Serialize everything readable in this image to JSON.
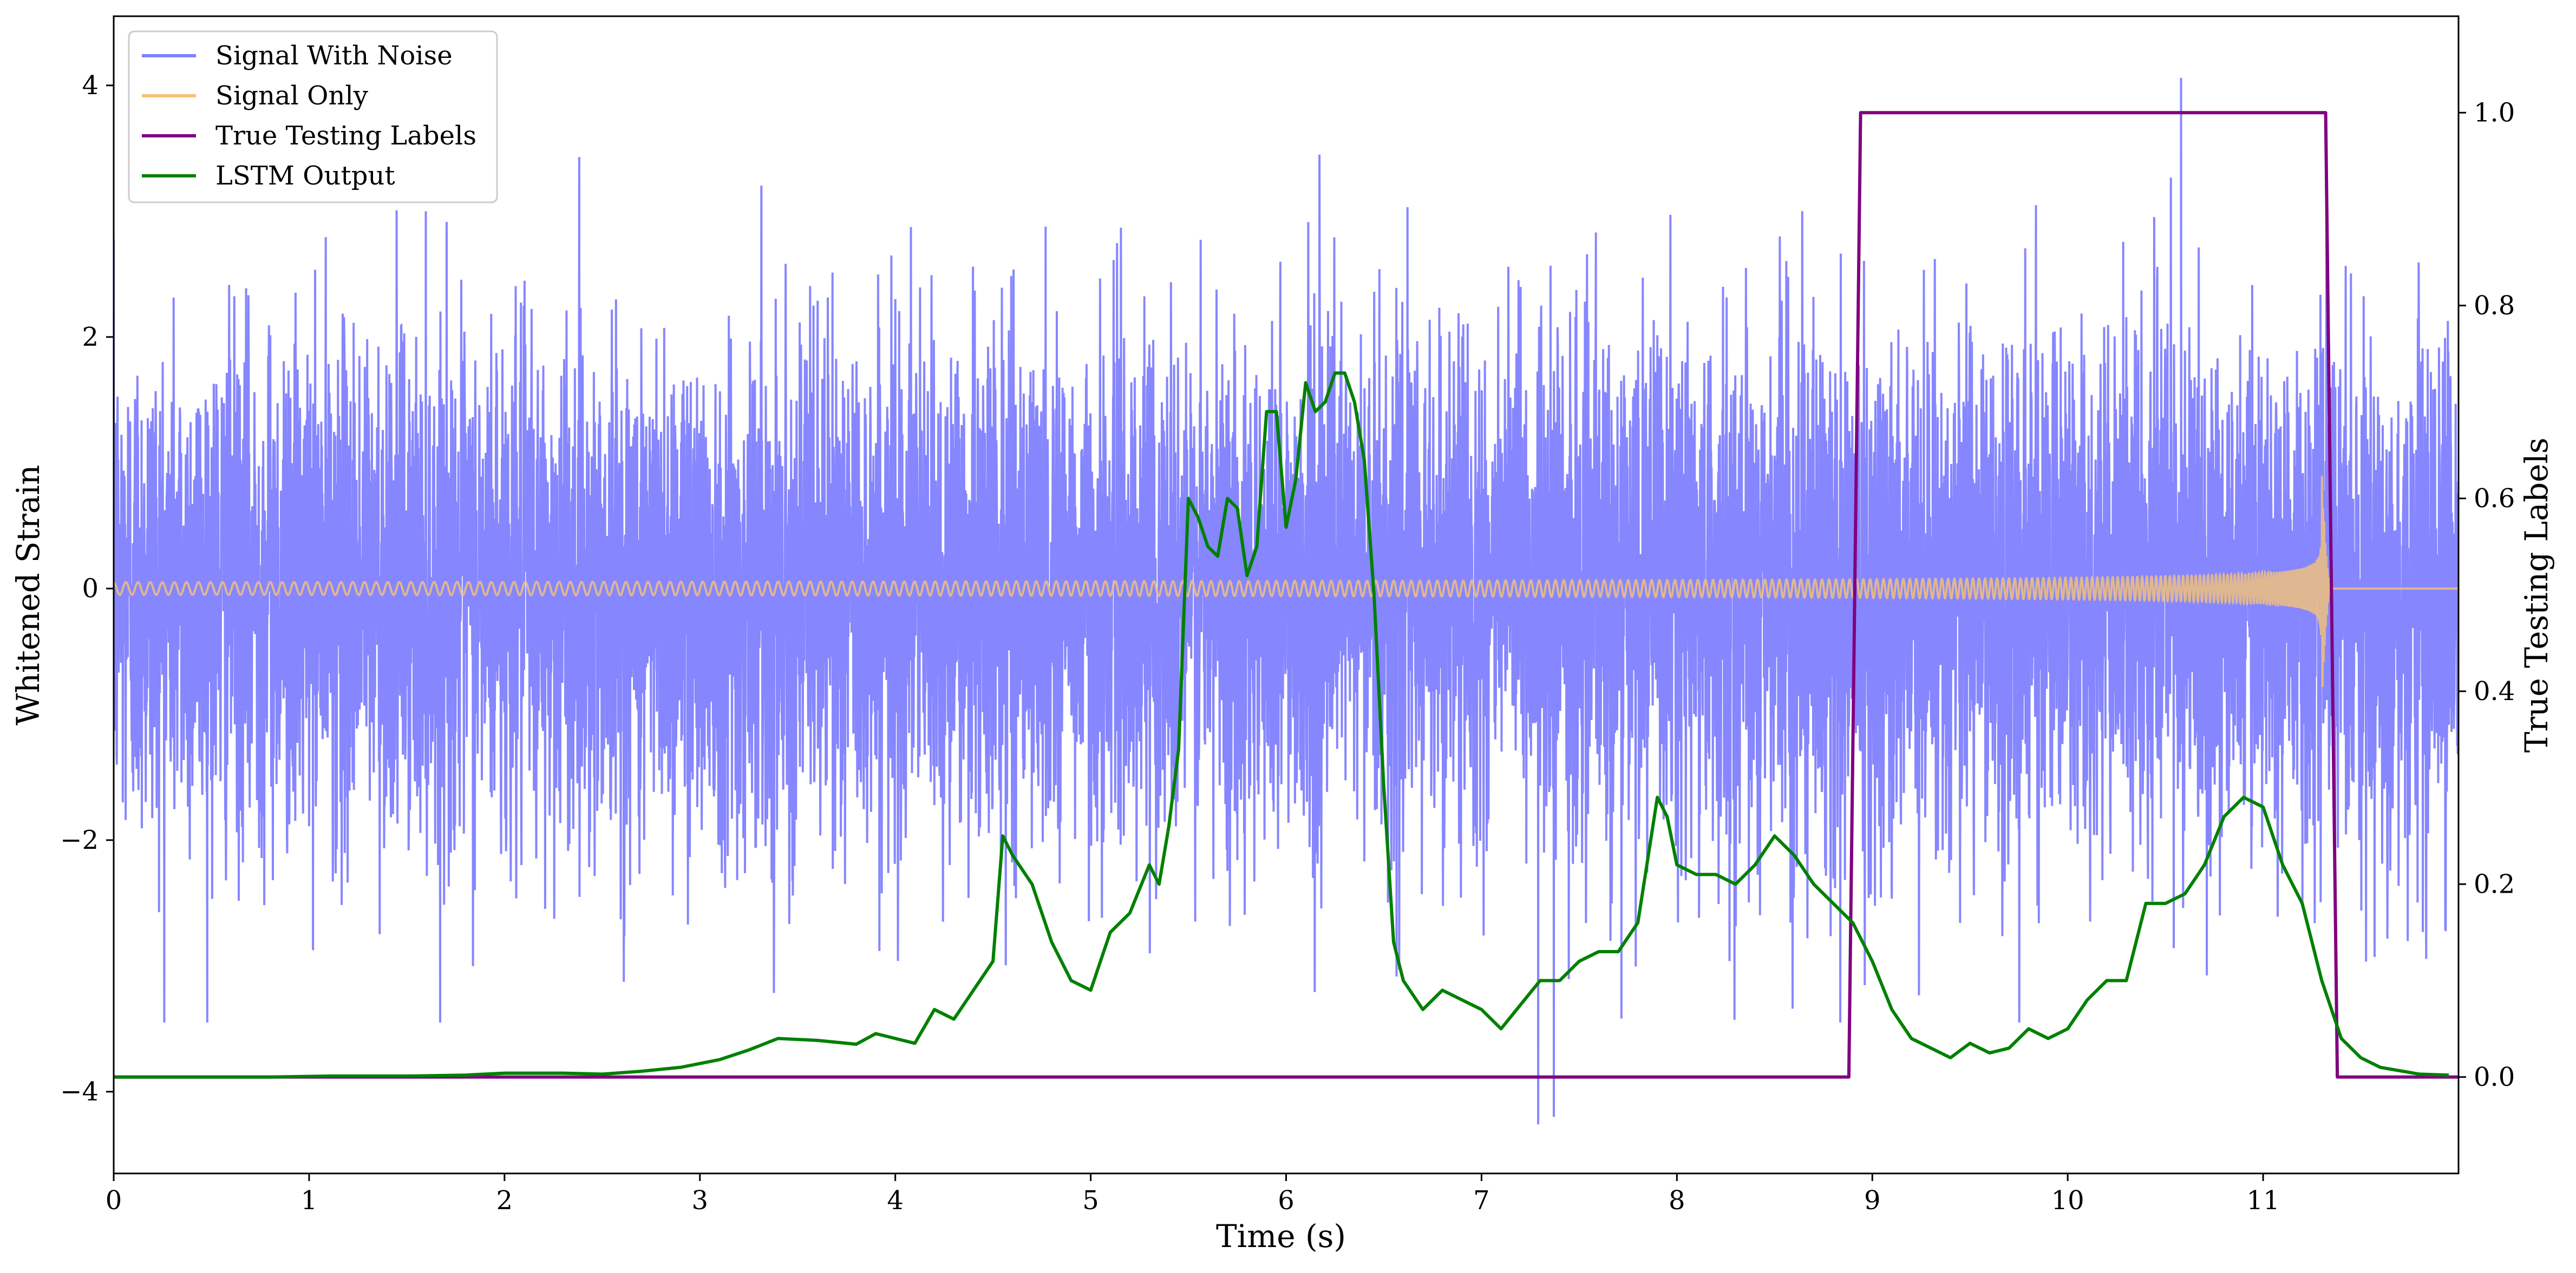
{
  "chart_data": {
    "type": "line",
    "xlabel": "Time (s)",
    "ylabel_left": "Whitened Strain",
    "ylabel_right": "True Testing Labels",
    "xlim": [
      0,
      12
    ],
    "ylim_left": [
      -4.65,
      4.55
    ],
    "ylim_right": [
      -0.1,
      1.1
    ],
    "x_ticks": [
      0,
      1,
      2,
      3,
      4,
      5,
      6,
      7,
      8,
      9,
      10,
      11
    ],
    "y_left_ticks": [
      -4,
      -2,
      0,
      2,
      4
    ],
    "y_left_tick_labels": [
      "−4",
      "−2",
      "0",
      "2",
      "4"
    ],
    "y_right_ticks": [
      0.0,
      0.2,
      0.4,
      0.6,
      0.8,
      1.0
    ],
    "y_right_tick_labels": [
      "0.0",
      "0.2",
      "0.4",
      "0.6",
      "0.8",
      "1.0"
    ],
    "grid": false,
    "legend_position": "top-left",
    "series": [
      {
        "name": "Signal With Noise",
        "color": "#7f7fff",
        "axis": "left",
        "kind": "noise",
        "duration": 12.0,
        "typical_amplitude": 1.0,
        "outlier_minima": [
          [
            7.29,
            -4.26
          ],
          [
            7.37,
            -4.2
          ]
        ],
        "outlier_maxima": [
          [
            10.58,
            4.06
          ]
        ]
      },
      {
        "name": "Signal Only",
        "color": "#f5c374",
        "axis": "left",
        "kind": "chirp",
        "start_amplitude": 0.05,
        "end_amplitude": 0.95,
        "merger_time": 11.3,
        "end_time": 11.35
      },
      {
        "name": "True Testing Labels",
        "color": "#800080",
        "axis": "right",
        "x": [
          0,
          8.88,
          8.94,
          11.32,
          11.38,
          12
        ],
        "y": [
          0,
          0,
          1,
          1,
          0,
          0
        ]
      },
      {
        "name": "LSTM Output",
        "color": "#008000",
        "axis": "right",
        "x": [
          0,
          0.8,
          1.1,
          1.5,
          1.8,
          2.0,
          2.3,
          2.5,
          2.7,
          2.9,
          3.1,
          3.25,
          3.4,
          3.6,
          3.8,
          3.9,
          4.0,
          4.1,
          4.2,
          4.3,
          4.4,
          4.5,
          4.55,
          4.6,
          4.7,
          4.8,
          4.9,
          5.0,
          5.05,
          5.1,
          5.2,
          5.3,
          5.35,
          5.4,
          5.45,
          5.5,
          5.55,
          5.6,
          5.65,
          5.7,
          5.75,
          5.8,
          5.85,
          5.9,
          5.95,
          6.0,
          6.05,
          6.1,
          6.15,
          6.2,
          6.25,
          6.3,
          6.35,
          6.4,
          6.45,
          6.5,
          6.55,
          6.6,
          6.7,
          6.8,
          6.9,
          7.0,
          7.1,
          7.3,
          7.4,
          7.5,
          7.6,
          7.7,
          7.8,
          7.9,
          7.95,
          8.0,
          8.1,
          8.2,
          8.3,
          8.4,
          8.5,
          8.6,
          8.7,
          8.8,
          8.9,
          9.0,
          9.1,
          9.2,
          9.3,
          9.4,
          9.5,
          9.6,
          9.7,
          9.8,
          9.9,
          10.0,
          10.1,
          10.2,
          10.3,
          10.4,
          10.5,
          10.6,
          10.7,
          10.8,
          10.9,
          11.0,
          11.1,
          11.2,
          11.3,
          11.4,
          11.5,
          11.6,
          11.8,
          11.95
        ],
        "y": [
          0.0,
          0.0,
          0.001,
          0.001,
          0.002,
          0.004,
          0.004,
          0.003,
          0.006,
          0.01,
          0.018,
          0.028,
          0.04,
          0.038,
          0.034,
          0.045,
          0.04,
          0.035,
          0.07,
          0.06,
          0.09,
          0.12,
          0.25,
          0.23,
          0.2,
          0.14,
          0.1,
          0.09,
          0.12,
          0.15,
          0.17,
          0.22,
          0.2,
          0.26,
          0.34,
          0.6,
          0.58,
          0.55,
          0.54,
          0.6,
          0.59,
          0.52,
          0.55,
          0.69,
          0.69,
          0.57,
          0.62,
          0.72,
          0.69,
          0.7,
          0.73,
          0.73,
          0.7,
          0.64,
          0.5,
          0.3,
          0.14,
          0.1,
          0.07,
          0.09,
          0.08,
          0.07,
          0.05,
          0.1,
          0.1,
          0.12,
          0.13,
          0.13,
          0.16,
          0.29,
          0.27,
          0.22,
          0.21,
          0.21,
          0.2,
          0.22,
          0.25,
          0.23,
          0.2,
          0.18,
          0.16,
          0.12,
          0.07,
          0.04,
          0.03,
          0.02,
          0.035,
          0.025,
          0.03,
          0.05,
          0.04,
          0.05,
          0.08,
          0.1,
          0.1,
          0.18,
          0.18,
          0.19,
          0.22,
          0.27,
          0.29,
          0.28,
          0.22,
          0.18,
          0.1,
          0.04,
          0.02,
          0.01,
          0.003,
          0.002
        ]
      }
    ]
  }
}
